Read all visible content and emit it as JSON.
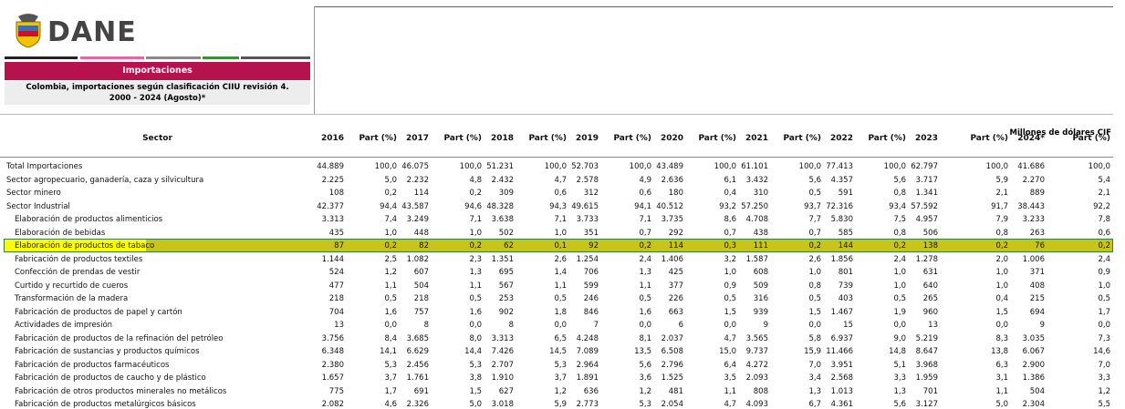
{
  "header": {
    "logo": "DANE",
    "title": "Importaciones",
    "subtitle": [
      "Colombia, importaciones según clasificación CIIU revisión 4.",
      "2000 - 2024 (Agosto)*"
    ],
    "unit": "Millones de dólares CIF"
  },
  "table": {
    "columns": [
      "Sector",
      "2016",
      "Part (%)",
      "2017",
      "Part (%)",
      "2018",
      "Part (%)",
      "2019",
      "Part (%)",
      "2020",
      "Part (%)",
      "2021",
      "Part (%)",
      "2022",
      "Part (%)",
      "2023",
      "Part (%)",
      "2024*",
      "Part (%)"
    ],
    "rows": [
      [
        "Total Importaciones",
        "44.889",
        "100,0",
        "46.075",
        "100,0",
        "51.231",
        "100,0",
        "52.703",
        "100,0",
        "43.489",
        "100,0",
        "61.101",
        "100,0",
        "77.413",
        "100,0",
        "62.797",
        "100,0",
        "41.686",
        "100,0"
      ],
      [
        "Sector agropecuario, ganadería, caza y silvicultura",
        "2.225",
        "5,0",
        "2.232",
        "4,8",
        "2.432",
        "4,7",
        "2.578",
        "4,9",
        "2.636",
        "6,1",
        "3.432",
        "5,6",
        "4.357",
        "5,6",
        "3.717",
        "5,9",
        "2.270",
        "5,4"
      ],
      [
        "Sector minero",
        "108",
        "0,2",
        "114",
        "0,2",
        "309",
        "0,6",
        "312",
        "0,6",
        "180",
        "0,4",
        "310",
        "0,5",
        "591",
        "0,8",
        "1.341",
        "2,1",
        "889",
        "2,1"
      ],
      [
        "Sector Industrial",
        "42.377",
        "94,4",
        "43.587",
        "94,6",
        "48.328",
        "94,3",
        "49.615",
        "94,1",
        "40.512",
        "93,2",
        "57.250",
        "93,7",
        "72.316",
        "93,4",
        "57.592",
        "91,7",
        "38.443",
        "92,2"
      ],
      [
        "Elaboración de productos alimenticios",
        "3.313",
        "7,4",
        "3.249",
        "7,1",
        "3.638",
        "7,1",
        "3.733",
        "7,1",
        "3.735",
        "8,6",
        "4.708",
        "7,7",
        "5.830",
        "7,5",
        "4.957",
        "7,9",
        "3.233",
        "7,8"
      ],
      [
        "Elaboración de bebidas",
        "435",
        "1,0",
        "448",
        "1,0",
        "502",
        "1,0",
        "351",
        "0,7",
        "292",
        "0,7",
        "438",
        "0,7",
        "585",
        "0,8",
        "506",
        "0,8",
        "263",
        "0,6"
      ],
      [
        "Elaboración de productos de tabaco",
        "87",
        "0,2",
        "82",
        "0,2",
        "62",
        "0,1",
        "92",
        "0,2",
        "114",
        "0,3",
        "111",
        "0,2",
        "144",
        "0,2",
        "138",
        "0,2",
        "76",
        "0,2"
      ],
      [
        "Fabricación de productos textiles",
        "1.144",
        "2,5",
        "1.082",
        "2,3",
        "1.351",
        "2,6",
        "1.254",
        "2,4",
        "1.406",
        "3,2",
        "1.587",
        "2,6",
        "1.856",
        "2,4",
        "1.278",
        "2,0",
        "1.006",
        "2,4"
      ],
      [
        "Confección de prendas de vestir",
        "524",
        "1,2",
        "607",
        "1,3",
        "695",
        "1,4",
        "706",
        "1,3",
        "425",
        "1,0",
        "608",
        "1,0",
        "801",
        "1,0",
        "631",
        "1,0",
        "371",
        "0,9"
      ],
      [
        "Curtido y recurtido de cueros",
        "477",
        "1,1",
        "504",
        "1,1",
        "567",
        "1,1",
        "599",
        "1,1",
        "377",
        "0,9",
        "509",
        "0,8",
        "739",
        "1,0",
        "640",
        "1,0",
        "408",
        "1,0"
      ],
      [
        "Transformación de la madera",
        "218",
        "0,5",
        "218",
        "0,5",
        "253",
        "0,5",
        "246",
        "0,5",
        "226",
        "0,5",
        "316",
        "0,5",
        "403",
        "0,5",
        "265",
        "0,4",
        "215",
        "0,5"
      ],
      [
        "Fabricación de productos de papel y cartón",
        "704",
        "1,6",
        "757",
        "1,6",
        "902",
        "1,8",
        "846",
        "1,6",
        "663",
        "1,5",
        "939",
        "1,5",
        "1.467",
        "1,9",
        "960",
        "1,5",
        "694",
        "1,7"
      ],
      [
        "Actividades de impresión",
        "13",
        "0,0",
        "8",
        "0,0",
        "8",
        "0,0",
        "7",
        "0,0",
        "6",
        "0,0",
        "9",
        "0,0",
        "15",
        "0,0",
        "13",
        "0,0",
        "9",
        "0,0"
      ],
      [
        "Fabricación de productos de la refinación del petróleo",
        "3.756",
        "8,4",
        "3.685",
        "8,0",
        "3.313",
        "6,5",
        "4.248",
        "8,1",
        "2.037",
        "4,7",
        "3.565",
        "5,8",
        "6.937",
        "9,0",
        "5.219",
        "8,3",
        "3.035",
        "7,3"
      ],
      [
        "Fabricación de sustancias y productos químicos",
        "6.348",
        "14,1",
        "6.629",
        "14,4",
        "7.426",
        "14,5",
        "7.089",
        "13,5",
        "6.508",
        "15,0",
        "9.737",
        "15,9",
        "11.466",
        "14,8",
        "8.647",
        "13,8",
        "6.067",
        "14,6"
      ],
      [
        "Fabricación de productos farmacéuticos",
        "2.380",
        "5,3",
        "2.456",
        "5,3",
        "2.707",
        "5,3",
        "2.964",
        "5,6",
        "2.796",
        "6,4",
        "4.272",
        "7,0",
        "3.951",
        "5,1",
        "3.968",
        "6,3",
        "2.900",
        "7,0"
      ],
      [
        "Fabricación de productos de caucho y de plástico",
        "1.657",
        "3,7",
        "1.761",
        "3,8",
        "1.910",
        "3,7",
        "1.891",
        "3,6",
        "1.525",
        "3,5",
        "2.093",
        "3,4",
        "2.568",
        "3,3",
        "1.959",
        "3,1",
        "1.386",
        "3,3"
      ],
      [
        "Fabricación de otros productos minerales no metálicos",
        "775",
        "1,7",
        "691",
        "1,5",
        "627",
        "1,2",
        "636",
        "1,2",
        "481",
        "1,1",
        "808",
        "1,3",
        "1.013",
        "1,3",
        "701",
        "1,1",
        "504",
        "1,2"
      ],
      [
        "Fabricación de productos metalúrgicos básicos",
        "2.082",
        "4,6",
        "2.326",
        "5,0",
        "3.018",
        "5,9",
        "2.773",
        "5,3",
        "2.054",
        "4,7",
        "4.093",
        "6,7",
        "4.361",
        "5,6",
        "3.127",
        "5,0",
        "2.304",
        "5,5"
      ]
    ]
  }
}
